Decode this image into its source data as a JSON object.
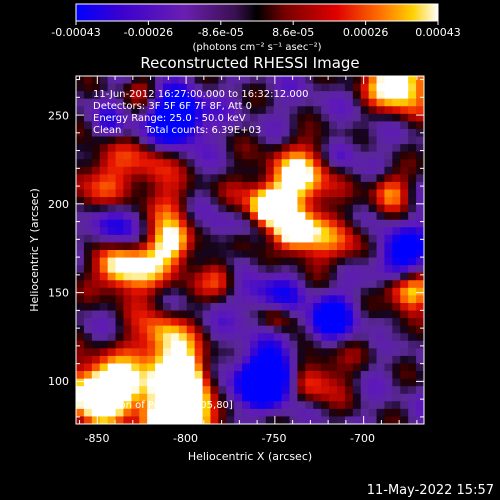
{
  "chart_data": {
    "type": "heatmap",
    "title": "Reconstructed RHESSI Image",
    "xlabel": "Heliocentric X (arcsec)",
    "ylabel": "Heliocentric Y (arcsec)",
    "xlim": [
      -862,
      -666
    ],
    "ylim": [
      76,
      272
    ],
    "xticks": [
      -850,
      -800,
      -750,
      -700
    ],
    "yticks": [
      100,
      150,
      200,
      250
    ],
    "colorbar": {
      "ticks": [
        "-0.00043",
        "-0.00026",
        "-8.6e-05",
        "8.6e-05",
        "0.00026",
        "0.00043"
      ],
      "range": [
        -0.00043,
        0.00043
      ],
      "unit_label": "(photons cm⁻² s⁻¹ asec⁻²)",
      "colormap": [
        "#0000ff",
        "#3a00d0",
        "#5a1fa8",
        "#7a2fa0",
        "#000000",
        "#6a0000",
        "#d40000",
        "#ff6a00",
        "#ffd000",
        "#ffffff"
      ]
    },
    "annotations": {
      "time_range": "11-Jun-2012 16:27:00.000 to 16:32:12.000",
      "detectors": "Detectors: 3F 5F 6F 7F 8F, Att 0",
      "energy_range": "Energy Range: 25.0 - 50.0 keV",
      "method": "Clean",
      "total_counts": "Total counts: 6.39E+03",
      "peak": "Position of Peak = [-805,80]"
    },
    "peak_position": [
      -805,
      80
    ],
    "grid": false,
    "grid_size": [
      44,
      46
    ]
  },
  "footer": {
    "date": "11-May-2022 15:57"
  }
}
